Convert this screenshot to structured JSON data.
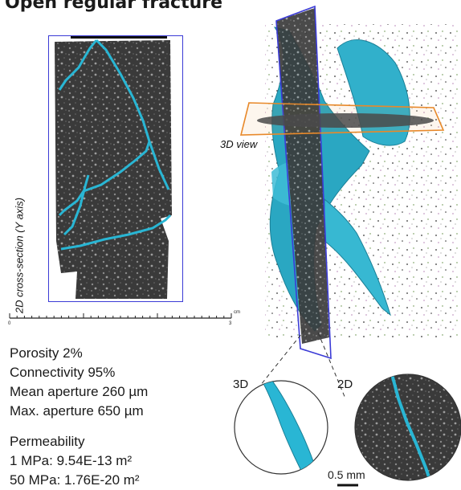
{
  "title": "Open regular fracture",
  "cross_section": {
    "label": "2D cross-section (Y axis)"
  },
  "view3d": {
    "label": "3D view"
  },
  "ruler": {
    "start_label": "0",
    "end_label": "3",
    "unit": "cm"
  },
  "stats": {
    "porosity": "Porosity 2%",
    "connectivity": "Connectivity 95%",
    "mean_aperture": "Mean aperture 260 µm",
    "max_aperture": "Max. aperture 650 µm"
  },
  "permeability": {
    "heading": "Permeability",
    "line_1mpa": "1 MPa: 9.54E-13 m²",
    "line_50mpa": "50 MPa: 1.76E-20 m²"
  },
  "insets": {
    "label_3d": "3D",
    "label_2d": "2D",
    "scale_bar": "0.5 mm"
  },
  "colors": {
    "fracture": "#29b6d4",
    "frame": "#3b3bd6",
    "plane": "#e8892a",
    "rock": "#3d3d3d"
  }
}
